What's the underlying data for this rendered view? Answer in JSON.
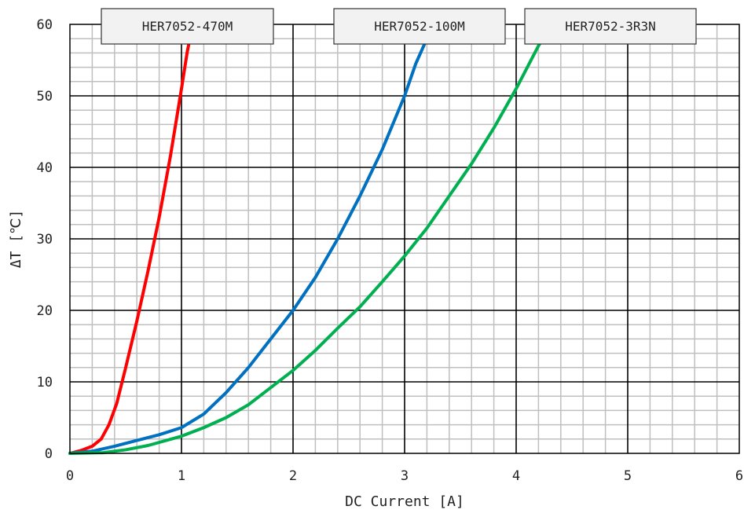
{
  "chart_data": {
    "type": "line",
    "title": "",
    "xlabel": "DC Current [A]",
    "ylabel": "ΔT [℃]",
    "xlim": [
      0,
      6
    ],
    "ylim": [
      0,
      60
    ],
    "x_ticks": [
      0,
      1,
      2,
      3,
      4,
      5,
      6
    ],
    "y_ticks": [
      0,
      10,
      20,
      30,
      40,
      50,
      60
    ],
    "x_minor_step": 0.2,
    "y_minor_step": 2,
    "grid": true,
    "legend": "series labels in boxes along the top edge",
    "series": [
      {
        "name": "HER7052-470M",
        "color": "#ff0000",
        "points": [
          [
            0,
            0
          ],
          [
            0.1,
            0.4
          ],
          [
            0.2,
            1.0
          ],
          [
            0.28,
            2.0
          ],
          [
            0.35,
            4.0
          ],
          [
            0.42,
            7.0
          ],
          [
            0.5,
            12.0
          ],
          [
            0.6,
            18.5
          ],
          [
            0.7,
            25.5
          ],
          [
            0.8,
            33.0
          ],
          [
            0.9,
            41.5
          ],
          [
            1.0,
            51.0
          ],
          [
            1.05,
            56.0
          ],
          [
            1.1,
            60.0
          ]
        ]
      },
      {
        "name": "HER7052-100M",
        "color": "#0070c0",
        "points": [
          [
            0,
            0
          ],
          [
            0.2,
            0.3
          ],
          [
            0.4,
            1.0
          ],
          [
            0.6,
            1.8
          ],
          [
            0.8,
            2.6
          ],
          [
            1.0,
            3.6
          ],
          [
            1.2,
            5.5
          ],
          [
            1.4,
            8.5
          ],
          [
            1.6,
            12.0
          ],
          [
            1.8,
            16.0
          ],
          [
            2.0,
            20.0
          ],
          [
            2.2,
            24.6
          ],
          [
            2.4,
            30.0
          ],
          [
            2.6,
            36.0
          ],
          [
            2.8,
            42.5
          ],
          [
            3.0,
            50.0
          ],
          [
            3.1,
            54.5
          ],
          [
            3.2,
            58.0
          ],
          [
            3.24,
            60.0
          ]
        ]
      },
      {
        "name": "HER7052-3R3N",
        "color": "#00b050",
        "points": [
          [
            0,
            0
          ],
          [
            0.3,
            0.1
          ],
          [
            0.5,
            0.5
          ],
          [
            0.7,
            1.1
          ],
          [
            1.0,
            2.4
          ],
          [
            1.2,
            3.6
          ],
          [
            1.4,
            5.0
          ],
          [
            1.6,
            6.8
          ],
          [
            1.8,
            9.2
          ],
          [
            2.0,
            11.6
          ],
          [
            2.2,
            14.4
          ],
          [
            2.4,
            17.5
          ],
          [
            2.6,
            20.5
          ],
          [
            2.8,
            24.0
          ],
          [
            3.0,
            27.6
          ],
          [
            3.2,
            31.5
          ],
          [
            3.4,
            36.0
          ],
          [
            3.6,
            40.5
          ],
          [
            3.8,
            45.5
          ],
          [
            4.0,
            51.0
          ],
          [
            4.2,
            57.0
          ],
          [
            4.33,
            60.0
          ]
        ]
      }
    ]
  }
}
